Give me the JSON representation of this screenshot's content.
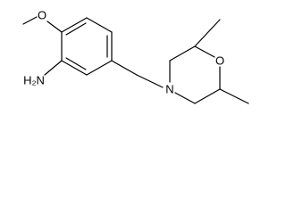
{
  "atoms": [
    {
      "label": "O"
    },
    {
      "label": "H₂N"
    },
    {
      "label": "N"
    },
    {
      "label": "O"
    }
  ]
}
